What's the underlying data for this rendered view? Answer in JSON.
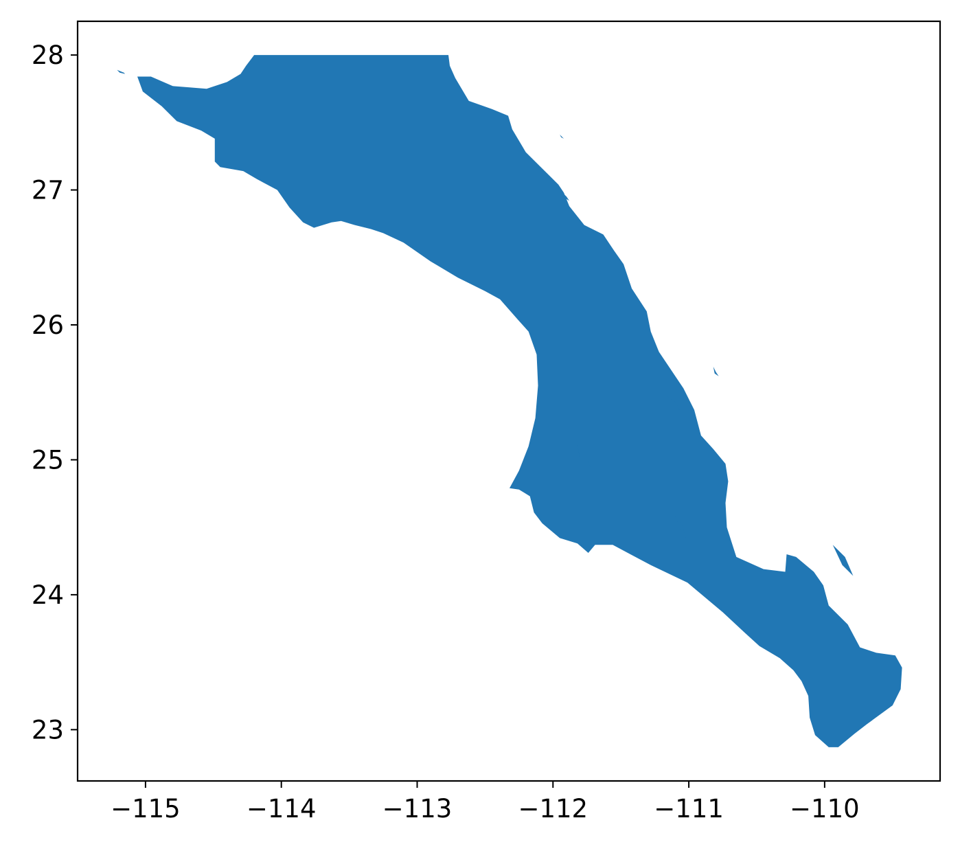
{
  "chart_data": {
    "type": "map",
    "region_fill_color": "#2177b4",
    "frame_color": "#000000",
    "xlim": [
      -115.5,
      -109.15
    ],
    "ylim": [
      22.62,
      28.25
    ],
    "x_ticks": [
      -115,
      -114,
      -113,
      -112,
      -111,
      -110
    ],
    "x_tick_labels": [
      "−115",
      "−114",
      "−113",
      "−112",
      "−111",
      "−110"
    ],
    "y_ticks": [
      23,
      24,
      25,
      26,
      27,
      28
    ],
    "y_tick_labels": [
      "23",
      "24",
      "25",
      "26",
      "27",
      "28"
    ],
    "mainland_outline": [
      [
        -114.2,
        28.0
      ],
      [
        -112.77,
        28.0
      ],
      [
        -112.76,
        27.92
      ],
      [
        -112.72,
        27.83
      ],
      [
        -112.62,
        27.66
      ],
      [
        -112.45,
        27.6
      ],
      [
        -112.33,
        27.55
      ],
      [
        -112.3,
        27.45
      ],
      [
        -112.2,
        27.28
      ],
      [
        -112.09,
        27.17
      ],
      [
        -111.96,
        27.04
      ],
      [
        -111.92,
        26.98
      ],
      [
        -111.88,
        26.88
      ],
      [
        -111.77,
        26.74
      ],
      [
        -111.63,
        26.67
      ],
      [
        -111.55,
        26.55
      ],
      [
        -111.48,
        26.45
      ],
      [
        -111.42,
        26.27
      ],
      [
        -111.31,
        26.1
      ],
      [
        -111.28,
        25.95
      ],
      [
        -111.22,
        25.8
      ],
      [
        -111.04,
        25.53
      ],
      [
        -110.96,
        25.37
      ],
      [
        -110.91,
        25.18
      ],
      [
        -110.82,
        25.08
      ],
      [
        -110.73,
        24.97
      ],
      [
        -110.71,
        24.84
      ],
      [
        -110.73,
        24.68
      ],
      [
        -110.72,
        24.5
      ],
      [
        -110.65,
        24.28
      ],
      [
        -110.45,
        24.19
      ],
      [
        -110.29,
        24.17
      ],
      [
        -110.28,
        24.3
      ],
      [
        -110.21,
        24.28
      ],
      [
        -110.08,
        24.17
      ],
      [
        -110.01,
        24.07
      ],
      [
        -109.97,
        23.92
      ],
      [
        -109.83,
        23.78
      ],
      [
        -109.74,
        23.61
      ],
      [
        -109.62,
        23.57
      ],
      [
        -109.48,
        23.55
      ],
      [
        -109.43,
        23.46
      ],
      [
        -109.44,
        23.3
      ],
      [
        -109.5,
        23.18
      ],
      [
        -109.69,
        23.04
      ],
      [
        -109.78,
        22.97
      ],
      [
        -109.9,
        22.87
      ],
      [
        -109.97,
        22.87
      ],
      [
        -110.07,
        22.96
      ],
      [
        -110.11,
        23.09
      ],
      [
        -110.12,
        23.25
      ],
      [
        -110.17,
        23.36
      ],
      [
        -110.23,
        23.44
      ],
      [
        -110.33,
        23.53
      ],
      [
        -110.48,
        23.62
      ],
      [
        -110.59,
        23.72
      ],
      [
        -110.75,
        23.87
      ],
      [
        -111.01,
        24.09
      ],
      [
        -111.28,
        24.22
      ],
      [
        -111.43,
        24.3
      ],
      [
        -111.56,
        24.37
      ],
      [
        -111.69,
        24.37
      ],
      [
        -111.74,
        24.31
      ],
      [
        -111.82,
        24.38
      ],
      [
        -111.95,
        24.42
      ],
      [
        -112.08,
        24.53
      ],
      [
        -112.14,
        24.61
      ],
      [
        -112.17,
        24.73
      ],
      [
        -112.25,
        24.78
      ],
      [
        -112.32,
        24.79
      ],
      [
        -112.25,
        24.92
      ],
      [
        -112.18,
        25.1
      ],
      [
        -112.13,
        25.31
      ],
      [
        -112.11,
        25.55
      ],
      [
        -112.12,
        25.78
      ],
      [
        -112.18,
        25.95
      ],
      [
        -112.26,
        26.04
      ],
      [
        -112.39,
        26.19
      ],
      [
        -112.5,
        26.25
      ],
      [
        -112.7,
        26.35
      ],
      [
        -112.9,
        26.47
      ],
      [
        -113.1,
        26.61
      ],
      [
        -113.25,
        26.68
      ],
      [
        -113.34,
        26.71
      ],
      [
        -113.46,
        26.74
      ],
      [
        -113.56,
        26.77
      ],
      [
        -113.63,
        26.76
      ],
      [
        -113.76,
        26.72
      ],
      [
        -113.84,
        26.76
      ],
      [
        -113.94,
        26.87
      ],
      [
        -114.03,
        27.0
      ],
      [
        -114.18,
        27.08
      ],
      [
        -114.28,
        27.14
      ],
      [
        -114.45,
        27.17
      ],
      [
        -114.49,
        27.21
      ],
      [
        -114.49,
        27.38
      ],
      [
        -114.59,
        27.44
      ],
      [
        -114.77,
        27.51
      ],
      [
        -114.88,
        27.62
      ],
      [
        -115.02,
        27.73
      ],
      [
        -115.06,
        27.84
      ],
      [
        -114.96,
        27.84
      ],
      [
        -114.8,
        27.77
      ],
      [
        -114.55,
        27.75
      ],
      [
        -114.4,
        27.8
      ],
      [
        -114.3,
        27.86
      ],
      [
        -114.26,
        27.92
      ],
      [
        -114.2,
        28.0
      ]
    ],
    "islands": [
      [
        [
          -111.82,
          25.11
        ],
        [
          -111.74,
          25.0
        ],
        [
          -111.72,
          24.92
        ],
        [
          -111.8,
          25.0
        ],
        [
          -111.82,
          25.11
        ]
      ],
      [
        [
          -111.1,
          24.58
        ],
        [
          -111.05,
          24.47
        ],
        [
          -111.02,
          24.42
        ],
        [
          -111.05,
          24.52
        ],
        [
          -111.1,
          24.58
        ]
      ],
      [
        [
          -109.94,
          24.37
        ],
        [
          -109.87,
          24.22
        ],
        [
          -109.79,
          24.14
        ],
        [
          -109.85,
          24.28
        ],
        [
          -109.94,
          24.37
        ]
      ],
      [
        [
          -111.16,
          25.47
        ],
        [
          -111.09,
          25.42
        ],
        [
          -111.07,
          25.37
        ],
        [
          -111.13,
          25.42
        ],
        [
          -111.16,
          25.47
        ]
      ],
      [
        [
          -110.82,
          25.69
        ],
        [
          -110.8,
          25.65
        ],
        [
          -110.78,
          25.62
        ],
        [
          -110.81,
          25.64
        ],
        [
          -110.82,
          25.69
        ]
      ],
      [
        [
          -111.95,
          27.0
        ],
        [
          -111.9,
          26.95
        ],
        [
          -111.88,
          26.92
        ],
        [
          -111.93,
          26.95
        ],
        [
          -111.95,
          27.0
        ]
      ],
      [
        [
          -115.21,
          27.89
        ],
        [
          -115.16,
          27.87
        ],
        [
          -115.15,
          27.86
        ],
        [
          -115.19,
          27.87
        ],
        [
          -115.21,
          27.89
        ]
      ],
      [
        [
          -111.95,
          27.41
        ],
        [
          -111.93,
          27.39
        ],
        [
          -111.92,
          27.38
        ],
        [
          -111.94,
          27.39
        ],
        [
          -111.95,
          27.41
        ]
      ]
    ]
  }
}
